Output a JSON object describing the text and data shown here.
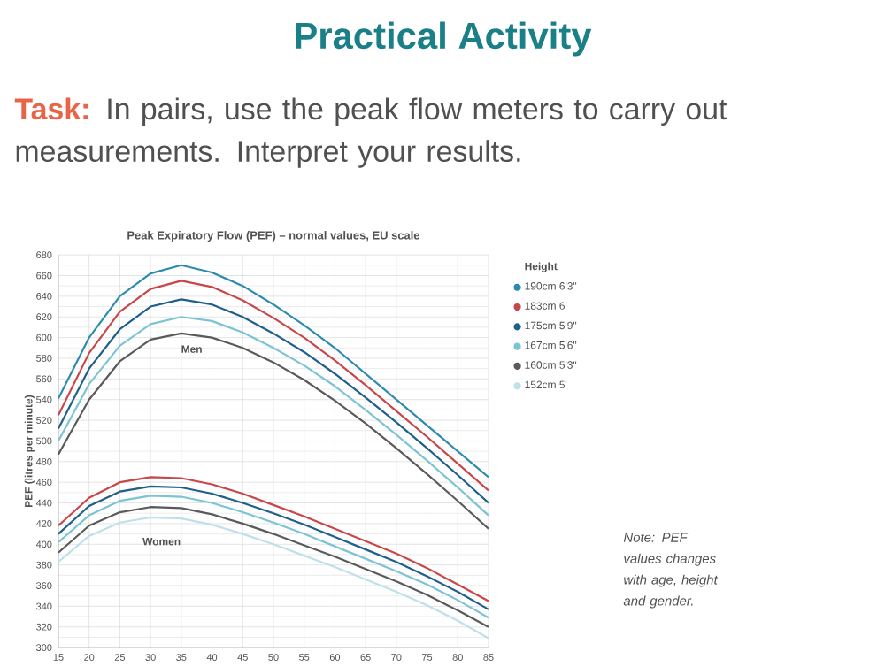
{
  "chart_data": {
    "type": "line",
    "title": "Peak Expiratory Flow (PEF) – normal values, EU scale",
    "ylabel": "PEF (litres per minute)",
    "legend_title": "Height",
    "legend": "right",
    "grid": true,
    "marker": "none",
    "line_style": "solid",
    "x": [
      15,
      20,
      25,
      30,
      35,
      40,
      45,
      50,
      55,
      60,
      65,
      70,
      75,
      80,
      85
    ],
    "xlim": [
      15,
      85
    ],
    "xticks": [
      15,
      20,
      25,
      30,
      35,
      40,
      45,
      50,
      55,
      60,
      65,
      70,
      75,
      80,
      85
    ],
    "ylim": [
      300,
      680
    ],
    "yticks": [
      300,
      320,
      340,
      360,
      380,
      400,
      420,
      440,
      460,
      480,
      500,
      520,
      540,
      560,
      580,
      600,
      620,
      640,
      660,
      680
    ],
    "series": [
      {
        "name": "190cm 6'3\"",
        "color": "#2e8bb0",
        "values": [
          541,
          600,
          640,
          662,
          670,
          663,
          650,
          632,
          612,
          590,
          565,
          540,
          515,
          490,
          465
        ]
      },
      {
        "name": "183cm 6'",
        "color": "#c9464a",
        "values": [
          525,
          585,
          625,
          647,
          655,
          649,
          636,
          619,
          600,
          578,
          554,
          529,
          504,
          478,
          452
        ]
      },
      {
        "name": "175cm 5'9\"",
        "color": "#1f5f8b",
        "values": [
          512,
          570,
          608,
          630,
          637,
          632,
          620,
          604,
          586,
          565,
          542,
          518,
          493,
          467,
          440
        ]
      },
      {
        "name": "167cm 5'6\"",
        "color": "#7cc4d4",
        "values": [
          500,
          555,
          592,
          613,
          620,
          616,
          605,
          590,
          573,
          553,
          530,
          506,
          481,
          455,
          428
        ]
      },
      {
        "name": "160cm 5'3\"",
        "color": "#5a5a5a",
        "values": [
          487,
          540,
          577,
          598,
          604,
          600,
          590,
          576,
          559,
          539,
          517,
          493,
          468,
          442,
          415
        ]
      },
      {
        "color": "#c9464a",
        "values": [
          418,
          445,
          460,
          465,
          464,
          458,
          449,
          438,
          427,
          415,
          403,
          391,
          377,
          361,
          345
        ]
      },
      {
        "color": "#1f5f8b",
        "values": [
          410,
          437,
          451,
          456,
          455,
          449,
          440,
          430,
          419,
          407,
          395,
          383,
          369,
          354,
          337
        ]
      },
      {
        "color": "#7cc4d4",
        "values": [
          402,
          428,
          442,
          447,
          446,
          440,
          431,
          421,
          410,
          398,
          386,
          374,
          361,
          346,
          329
        ]
      },
      {
        "color": "#5a5a5a",
        "values": [
          392,
          418,
          431,
          436,
          435,
          429,
          420,
          410,
          399,
          388,
          376,
          364,
          351,
          336,
          320
        ]
      },
      {
        "name": "152cm 5'",
        "color": "#bfe0ea",
        "values": [
          383,
          408,
          421,
          426,
          425,
          419,
          410,
          400,
          389,
          378,
          366,
          354,
          341,
          326,
          309
        ]
      }
    ],
    "annotations": [
      "Practical Activity",
      "Task:",
      "In pairs, use the peak flow meters to carry out measurements. Interpret your results.",
      "Note: PEF values changes with age, height and gender.",
      "Men",
      "Women"
    ]
  }
}
